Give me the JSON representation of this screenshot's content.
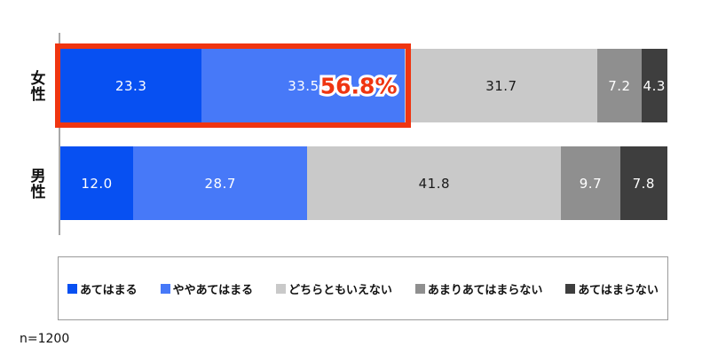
{
  "chart_data": {
    "type": "bar",
    "stacked": true,
    "orientation": "horizontal",
    "categories": [
      "女性",
      "男性"
    ],
    "series": [
      {
        "name": "あてはまる",
        "color": "#0750f2",
        "label_color": "#ffffff",
        "values": [
          23.3,
          12.0
        ]
      },
      {
        "name": "ややあてはまる",
        "color": "#4779f8",
        "label_color": "#ffffff",
        "values": [
          33.5,
          28.7
        ]
      },
      {
        "name": "どちらともいえない",
        "color": "#c9c9c9",
        "label_color": "#1a1a1a",
        "values": [
          31.7,
          41.8
        ]
      },
      {
        "name": "あまりあてはまらない",
        "color": "#8f8f8f",
        "label_color": "#ffffff",
        "values": [
          7.2,
          9.7
        ]
      },
      {
        "name": "あてはまらない",
        "color": "#3e3e3e",
        "label_color": "#ffffff",
        "values": [
          4.3,
          7.8
        ]
      }
    ],
    "highlight": {
      "row_index": 0,
      "span_total": 56.8,
      "label": "56.8%",
      "color": "#ef3511"
    },
    "xlim": [
      0,
      100
    ],
    "legend_position": "bottom",
    "title": "",
    "xlabel": "",
    "ylabel": ""
  },
  "footnote": "n=1200"
}
